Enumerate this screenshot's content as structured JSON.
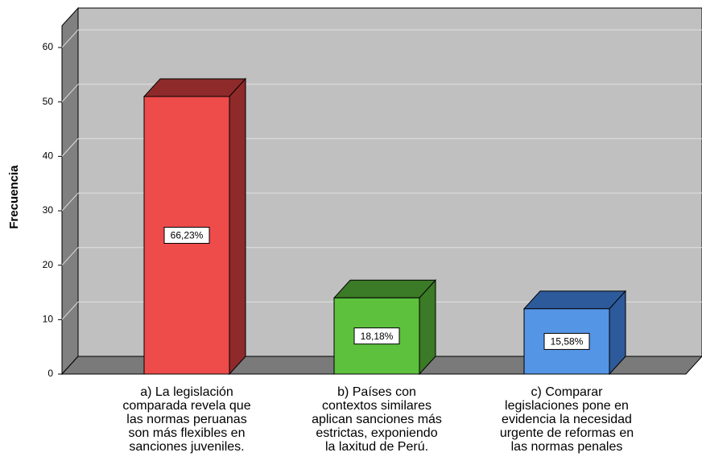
{
  "chart_data": {
    "type": "bar3d",
    "y_label": "Frecuencia",
    "categories": [
      "a) La legislación\ncomparada revela que\nlas normas peruanas\nson más flexibles en\nsanciones juveniles.",
      "b) Países con\ncontextos similares\naplican sanciones más\nestrictas, exponiendo\nla laxitud de Perú.",
      "c) Comparar\nlegislaciones pone en\nevidencia la necesidad\nurgente de reformas en\nlas normas penales"
    ],
    "values": [
      51,
      14,
      12
    ],
    "data_labels": [
      "66,23%",
      "18,18%",
      "15,58%"
    ],
    "colors": [
      "#ee4b4b",
      "#5dc13e",
      "#5595e6"
    ],
    "side_colors": [
      "#8f2a2a",
      "#3b7a26",
      "#2d5a9a"
    ],
    "ylim": [
      0,
      64
    ],
    "yticks": [
      0,
      10,
      20,
      30,
      40,
      50,
      60
    ],
    "grid": true
  }
}
